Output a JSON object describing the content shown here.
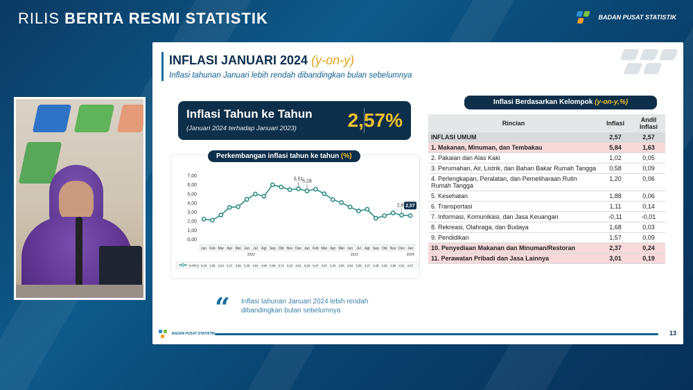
{
  "header": {
    "title_light": "RILIS",
    "title_bold": "BERITA RESMI STATISTIK",
    "logo_label": "BADAN PUSAT STATISTIK"
  },
  "slide": {
    "title": "INFLASI JANUARI 2024",
    "title_yoy": "(y-on-y)",
    "subtitle": "Inflasi tahunan Januari lebih rendah dibandingkan bulan sebelumnya",
    "headline": {
      "title": "Inflasi Tahun ke Tahun",
      "note": "(Januari 2024 terhadap Januari 2023)",
      "value": "2,57%"
    },
    "chart_title": "Perkembangan inflasi tahun ke tahun",
    "chart_title_unit": "(%)",
    "quote": "Inflasi tahunan Januari 2024 lebih rendah dibandingkan bulan sebelumnya",
    "table_title": "Inflasi Berdasarkan Kelompok",
    "table_title_unit": "(y-on-y,%)",
    "table_headers": [
      "Rincian",
      "Inflasi",
      "Andil Inflasi"
    ],
    "table_rows": [
      {
        "label": "INFLASI UMUM",
        "inflasi": "2,57",
        "andil": "2,57",
        "style": "umum"
      },
      {
        "label": "1.  Makanan, Minuman, dan Tembakau",
        "inflasi": "5,84",
        "andil": "1,63",
        "style": "hl"
      },
      {
        "label": "2.  Pakaian dan Alas Kaki",
        "inflasi": "1,02",
        "andil": "0,05",
        "style": ""
      },
      {
        "label": "3.  Perumahan, Air, Listrik, dan Bahan Bakar Rumah Tangga",
        "inflasi": "0,58",
        "andil": "0,09",
        "style": ""
      },
      {
        "label": "4.  Perlengkapan, Peralatan, dan Pemeliharaan Rutin Rumah Tangga",
        "inflasi": "1,20",
        "andil": "0,06",
        "style": ""
      },
      {
        "label": "5.  Kesehatan",
        "inflasi": "1,88",
        "andil": "0,06",
        "style": ""
      },
      {
        "label": "6.  Transportasi",
        "inflasi": "1,11",
        "andil": "0,14",
        "style": ""
      },
      {
        "label": "7.  Informasi, Komunikasi, dan Jasa Keuangan",
        "inflasi": "-0,11",
        "andil": "-0,01",
        "style": ""
      },
      {
        "label": "8.  Rekreasi, Olahraga, dan Budaya",
        "inflasi": "1,68",
        "andil": "0,03",
        "style": ""
      },
      {
        "label": "9.  Pendidikan",
        "inflasi": "1,57",
        "andil": "0,09",
        "style": ""
      },
      {
        "label": "10. Penyediaan Makanan dan Minuman/Restoran",
        "inflasi": "2,37",
        "andil": "0,24",
        "style": "hl"
      },
      {
        "label": "11. Perawatan Pribadi dan Jasa Lainnya",
        "inflasi": "3,01",
        "andil": "0,19",
        "style": "hl"
      }
    ],
    "footer_logo_label": "BADAN PUSAT STATISTIK",
    "page_number": "13"
  },
  "chart_data": {
    "type": "line",
    "categories": [
      "Jan",
      "Feb",
      "Mar",
      "Apr",
      "Mei",
      "Jun",
      "Jul",
      "Agt",
      "Sep",
      "Okt",
      "Nov",
      "Des",
      "Jan",
      "Feb",
      "Mar",
      "Apr",
      "Mei",
      "Jun",
      "Jul",
      "Agt",
      "Sep",
      "Okt",
      "Nov",
      "Des",
      "Jan"
    ],
    "year_labels": [
      {
        "label": "2022",
        "index": 5.5
      },
      {
        "label": "2023",
        "index": 17.5
      },
      {
        "label": "2024",
        "index": 24
      }
    ],
    "series": [
      {
        "name": "y-on-y",
        "values": [
          2.18,
          2.06,
          2.64,
          3.47,
          3.55,
          4.35,
          4.94,
          4.69,
          5.95,
          5.71,
          5.42,
          5.51,
          5.28,
          5.47,
          4.97,
          4.33,
          4.0,
          3.52,
          3.08,
          3.27,
          2.28,
          2.56,
          2.86,
          2.61,
          2.57
        ],
        "value_labels": [
          "2,18",
          "2,06",
          "2,64",
          "3,47",
          "3,55",
          "4,35",
          "4,94",
          "4,69",
          "5,95",
          "5,71",
          "5,42",
          "5,51",
          "5,28",
          "5,47",
          "4,97",
          "4,33",
          "4,00",
          "3,52",
          "3,08",
          "3,27",
          "2,28",
          "2,56",
          "2,86",
          "2,61",
          "2,57"
        ]
      }
    ],
    "annotations": [
      {
        "index": 11,
        "label": "5,51"
      },
      {
        "index": 12,
        "label": "5,28"
      },
      {
        "index": 23,
        "label": "2,61"
      },
      {
        "index": 24,
        "label": "2,57",
        "highlight": true
      }
    ],
    "y_ticks": [
      "0,00",
      "1,00",
      "2,00",
      "3,00",
      "4,00",
      "5,00",
      "6,00",
      "7,00"
    ],
    "ylim": [
      0,
      7
    ],
    "line_color": "#2e8b82",
    "highlight_color": "#0e2f4a",
    "grid": false,
    "legend": "bottom-left"
  },
  "colors": {
    "navy": "#0e2f4a",
    "accent_gold": "#f2c12e",
    "highlight_row": "#f7d9d9"
  }
}
